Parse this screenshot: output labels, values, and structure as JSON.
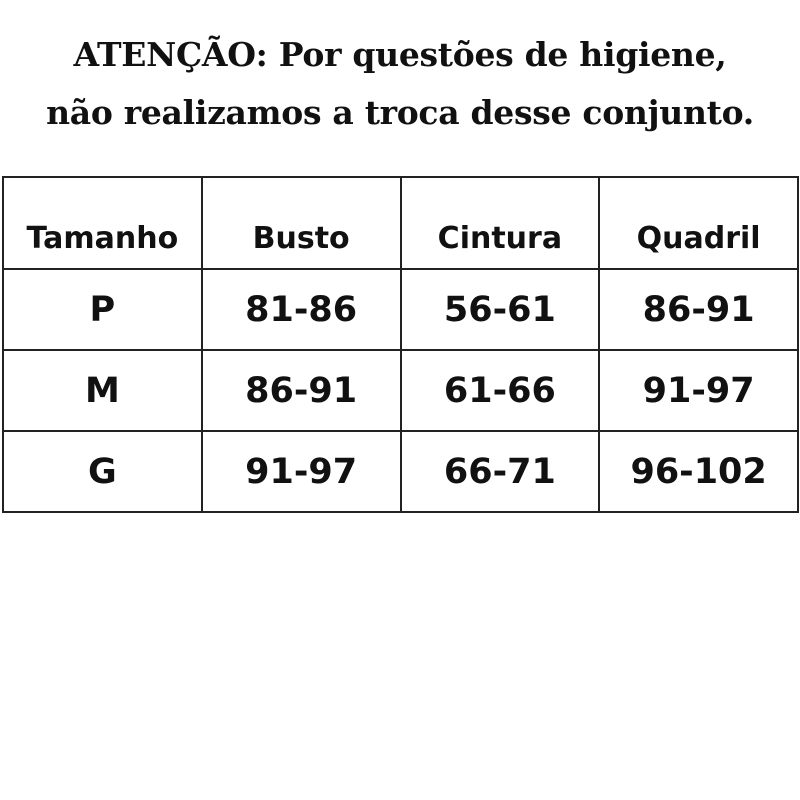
{
  "notice": {
    "line1": "ATENÇÃO: Por questões de higiene,",
    "line2": "não realizamos a troca desse conjunto."
  },
  "table": {
    "headers": [
      "Tamanho",
      "Busto",
      "Cintura",
      "Quadril"
    ],
    "rows": [
      [
        "P",
        "81-86",
        "56-61",
        "86-91"
      ],
      [
        "M",
        "86-91",
        "61-66",
        "91-97"
      ],
      [
        "G",
        "91-97",
        "66-71",
        "96-102"
      ]
    ]
  }
}
